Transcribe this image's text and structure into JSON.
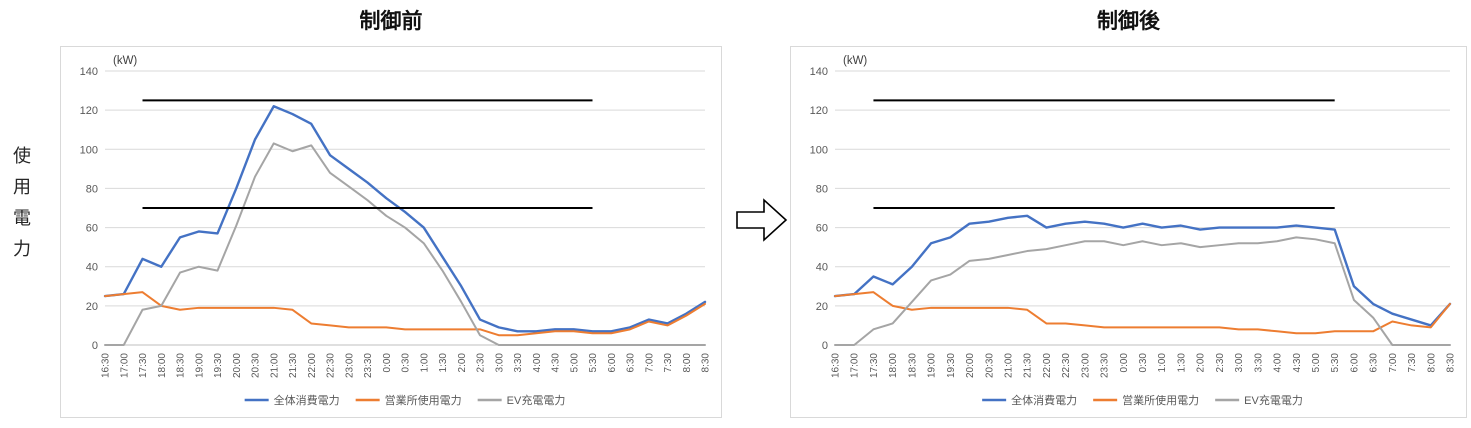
{
  "page": {
    "y_axis_label": "使用電力"
  },
  "chart_data": [
    {
      "type": "line",
      "title": "制御前",
      "unit_label": "(kW)",
      "xlabel": "",
      "ylabel": "使用電力",
      "ylim": [
        0,
        140
      ],
      "y_ticks": [
        0,
        20,
        40,
        60,
        80,
        100,
        120,
        140
      ],
      "grid": true,
      "legend_position": "bottom",
      "categories": [
        "16:30",
        "17:00",
        "17:30",
        "18:00",
        "18:30",
        "19:00",
        "19:30",
        "20:00",
        "20:30",
        "21:00",
        "21:30",
        "22:00",
        "22:30",
        "23:00",
        "23:30",
        "0:00",
        "0:30",
        "1:00",
        "1:30",
        "2:00",
        "2:30",
        "3:00",
        "3:30",
        "4:00",
        "4:30",
        "5:00",
        "5:30",
        "6:00",
        "6:30",
        "7:00",
        "7:30",
        "8:00",
        "8:30"
      ],
      "series": [
        {
          "name": "全体消費電力",
          "color": "#4472C4",
          "values": [
            25,
            26,
            44,
            40,
            55,
            58,
            57,
            80,
            105,
            122,
            118,
            113,
            97,
            90,
            83,
            75,
            68,
            60,
            45,
            30,
            13,
            9,
            7,
            7,
            8,
            8,
            7,
            7,
            9,
            13,
            11,
            16,
            22
          ]
        },
        {
          "name": "営業所使用電力",
          "color": "#ED7D31",
          "values": [
            25,
            26,
            27,
            20,
            18,
            19,
            19,
            19,
            19,
            19,
            18,
            11,
            10,
            9,
            9,
            9,
            8,
            8,
            8,
            8,
            8,
            5,
            5,
            6,
            7,
            7,
            6,
            6,
            8,
            12,
            10,
            15,
            21
          ]
        },
        {
          "name": "EV充電電力",
          "color": "#A5A5A5",
          "values": [
            0,
            0,
            18,
            20,
            37,
            40,
            38,
            61,
            86,
            103,
            99,
            102,
            88,
            81,
            74,
            66,
            60,
            52,
            38,
            22,
            5,
            0,
            0,
            0,
            0,
            0,
            0,
            0,
            0,
            0,
            0,
            0,
            0
          ]
        }
      ],
      "limit_lines": [
        {
          "y": 125,
          "x_start_index": 2,
          "x_end_index": 26,
          "color": "#000000"
        },
        {
          "y": 70,
          "x_start_index": 2,
          "x_end_index": 26,
          "color": "#000000"
        }
      ]
    },
    {
      "type": "line",
      "title": "制御後",
      "unit_label": "(kW)",
      "xlabel": "",
      "ylabel": "",
      "ylim": [
        0,
        140
      ],
      "y_ticks": [
        0,
        20,
        40,
        60,
        80,
        100,
        120,
        140
      ],
      "grid": true,
      "legend_position": "bottom",
      "categories": [
        "16:30",
        "17:00",
        "17:30",
        "18:00",
        "18:30",
        "19:00",
        "19:30",
        "20:00",
        "20:30",
        "21:00",
        "21:30",
        "22:00",
        "22:30",
        "23:00",
        "23:30",
        "0:00",
        "0:30",
        "1:00",
        "1:30",
        "2:00",
        "2:30",
        "3:00",
        "3:30",
        "4:00",
        "4:30",
        "5:00",
        "5:30",
        "6:00",
        "6:30",
        "7:00",
        "7:30",
        "8:00",
        "8:30"
      ],
      "series": [
        {
          "name": "全体消費電力",
          "color": "#4472C4",
          "values": [
            25,
            26,
            35,
            31,
            40,
            52,
            55,
            62,
            63,
            65,
            66,
            60,
            62,
            63,
            62,
            60,
            62,
            60,
            61,
            59,
            60,
            60,
            60,
            60,
            61,
            60,
            59,
            30,
            21,
            16,
            13,
            10,
            21
          ]
        },
        {
          "name": "営業所使用電力",
          "color": "#ED7D31",
          "values": [
            25,
            26,
            27,
            20,
            18,
            19,
            19,
            19,
            19,
            19,
            18,
            11,
            11,
            10,
            9,
            9,
            9,
            9,
            9,
            9,
            9,
            8,
            8,
            7,
            6,
            6,
            7,
            7,
            7,
            12,
            10,
            9,
            21
          ]
        },
        {
          "name": "EV充電電力",
          "color": "#A5A5A5",
          "values": [
            0,
            0,
            8,
            11,
            22,
            33,
            36,
            43,
            44,
            46,
            48,
            49,
            51,
            53,
            53,
            51,
            53,
            51,
            52,
            50,
            51,
            52,
            52,
            53,
            55,
            54,
            52,
            23,
            14,
            0,
            0,
            0,
            0
          ]
        }
      ],
      "limit_lines": [
        {
          "y": 125,
          "x_start_index": 2,
          "x_end_index": 26,
          "color": "#000000"
        },
        {
          "y": 70,
          "x_start_index": 2,
          "x_end_index": 26,
          "color": "#000000"
        }
      ]
    }
  ]
}
